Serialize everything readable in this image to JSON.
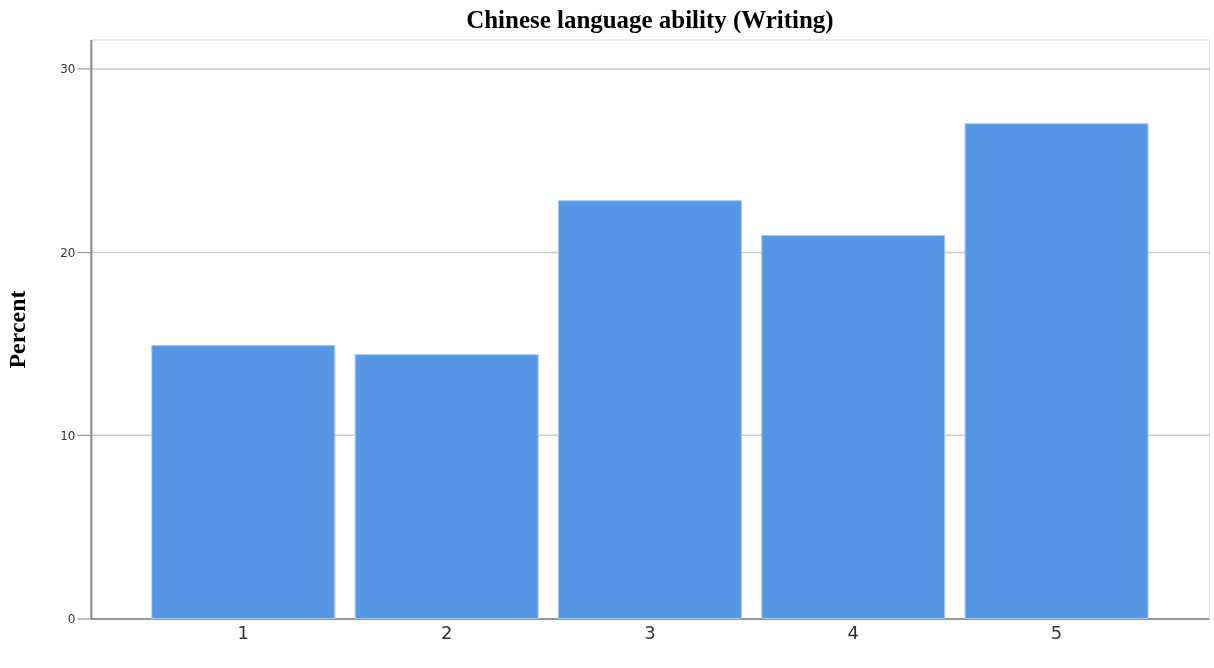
{
  "chart_data": {
    "type": "bar",
    "title": "Chinese language ability (Writing)",
    "ylabel": "Percent",
    "categories": [
      "1",
      "2",
      "3",
      "4",
      "5"
    ],
    "values": [
      14.9,
      14.4,
      22.8,
      20.9,
      27.0
    ],
    "color": "#5596e5",
    "ylim": [
      0,
      31.6
    ],
    "yticks": [
      0,
      10,
      20,
      30
    ],
    "grid": "y"
  }
}
